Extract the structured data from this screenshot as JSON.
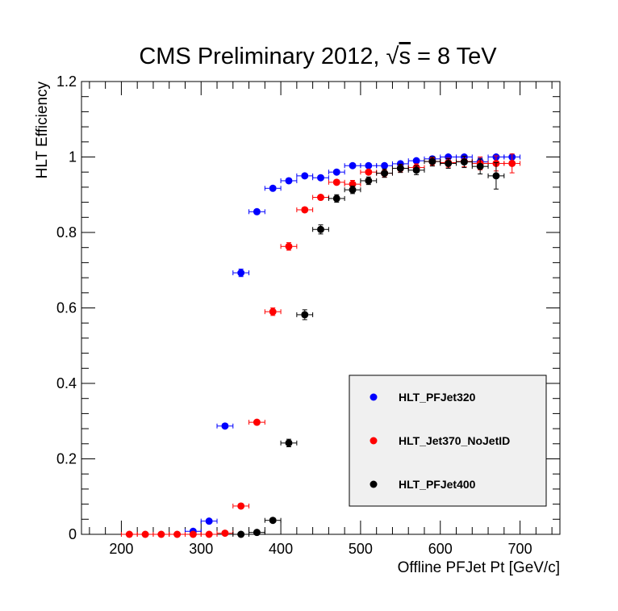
{
  "chart_data": {
    "type": "scatter",
    "title": "CMS Preliminary 2012, √s = 8 TeV",
    "title_parts": {
      "prefix": "CMS Preliminary 2012, ",
      "sqrt": "√",
      "s": "s",
      "suffix": " = 8 TeV"
    },
    "xlabel": "Offline PFJet Pt [GeV/c]",
    "ylabel": "HLT Efficiency",
    "xlim": [
      150,
      750
    ],
    "ylim": [
      0,
      1.2
    ],
    "xticks": [
      200,
      300,
      400,
      500,
      600,
      700
    ],
    "yticks": [
      0,
      0.2,
      0.4,
      0.6,
      0.8,
      1,
      1.2
    ],
    "ytick_labels": [
      "0",
      "0.2",
      "0.4",
      "0.6",
      "0.8",
      "1",
      "1.2"
    ],
    "x_error": 10,
    "legend_position": "bottom-right",
    "series": [
      {
        "name": "HLT_PFJet320",
        "color": "#0000ff",
        "x": [
          290,
          310,
          330,
          350,
          370,
          390,
          410,
          430,
          450,
          470,
          490,
          510,
          530,
          550,
          570,
          590,
          610,
          630,
          650,
          670,
          690
        ],
        "y": [
          0.008,
          0.035,
          0.287,
          0.693,
          0.855,
          0.917,
          0.937,
          0.95,
          0.945,
          0.96,
          0.977,
          0.977,
          0.977,
          0.982,
          0.99,
          0.995,
          1.0,
          1.0,
          0.987,
          1.0,
          1.0
        ],
        "yerr": [
          0.003,
          0.005,
          0.009,
          0.01,
          0.008,
          0.006,
          0.006,
          0.005,
          0.006,
          0.006,
          0.005,
          0.005,
          0.006,
          0.006,
          0.006,
          0.006,
          0.006,
          0.007,
          0.01,
          0.008,
          0.008
        ]
      },
      {
        "name": "HLT_Jet370_NoJetID",
        "color": "#ff0000",
        "x": [
          210,
          230,
          250,
          270,
          290,
          310,
          330,
          350,
          370,
          390,
          410,
          430,
          450,
          470,
          490,
          510,
          530,
          550,
          570,
          590,
          610,
          630,
          650,
          670,
          690
        ],
        "y": [
          0,
          0,
          0,
          0,
          0,
          0,
          0.003,
          0.075,
          0.297,
          0.59,
          0.763,
          0.86,
          0.893,
          0.933,
          0.928,
          0.96,
          0.957,
          0.97,
          0.972,
          0.988,
          0.985,
          0.988,
          0.983,
          0.983,
          0.983
        ],
        "yerr": [
          0,
          0,
          0,
          0,
          0,
          0,
          0.002,
          0.006,
          0.008,
          0.01,
          0.01,
          0.009,
          0.009,
          0.009,
          0.01,
          0.009,
          0.01,
          0.01,
          0.01,
          0.01,
          0.012,
          0.014,
          0.017,
          0.02,
          0.025
        ]
      },
      {
        "name": "HLT_PFJet400",
        "color": "#000000",
        "x": [
          350,
          370,
          390,
          410,
          430,
          450,
          470,
          490,
          510,
          530,
          550,
          570,
          590,
          610,
          630,
          650,
          670
        ],
        "y": [
          0,
          0.005,
          0.037,
          0.242,
          0.582,
          0.808,
          0.89,
          0.913,
          0.937,
          0.957,
          0.97,
          0.965,
          0.988,
          0.983,
          0.987,
          0.975,
          0.95
        ],
        "yerr": [
          0,
          0.002,
          0.005,
          0.01,
          0.013,
          0.012,
          0.01,
          0.01,
          0.01,
          0.011,
          0.011,
          0.012,
          0.012,
          0.013,
          0.015,
          0.02,
          0.035
        ]
      }
    ]
  }
}
